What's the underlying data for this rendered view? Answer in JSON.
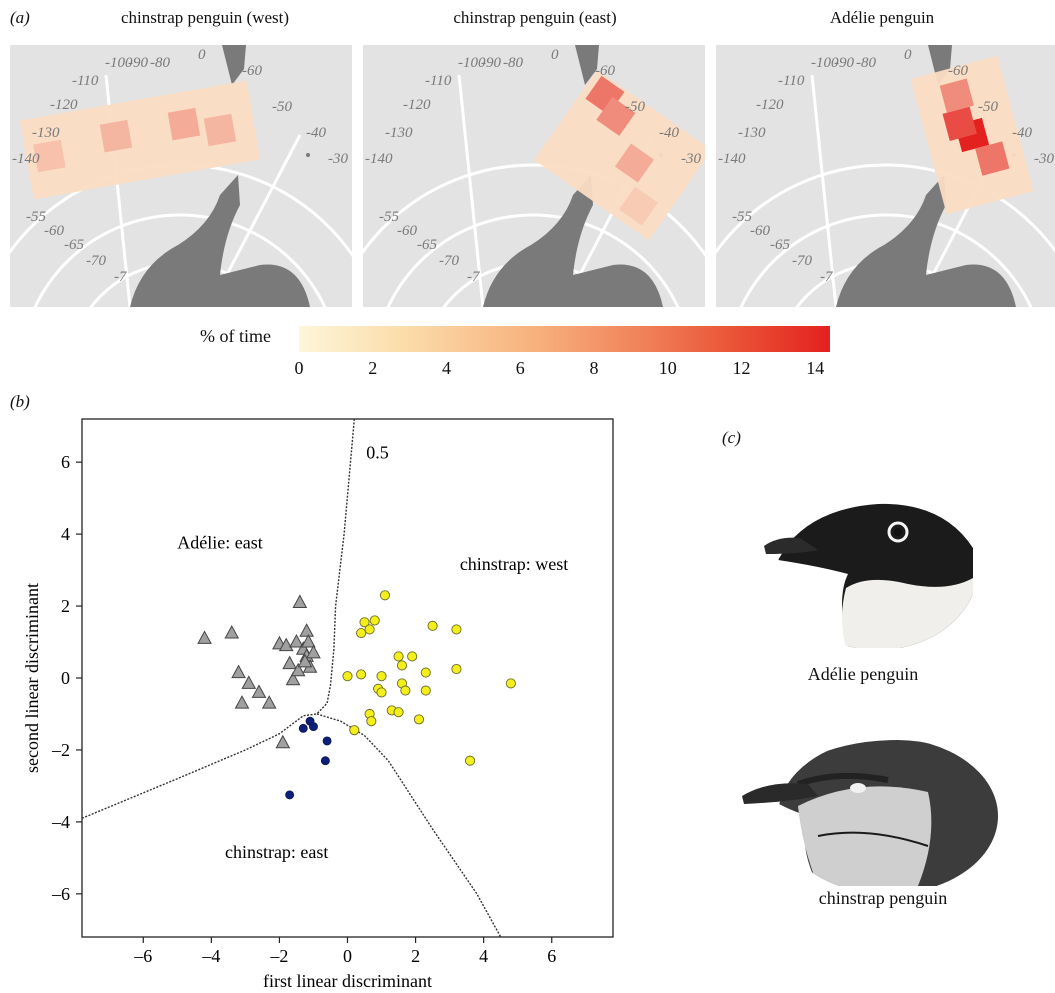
{
  "panel_a": {
    "letter": "a",
    "maps": [
      {
        "title": "chinstrap penguin (west)"
      },
      {
        "title": "chinstrap penguin (east)"
      },
      {
        "title": "Adélie penguin"
      }
    ],
    "longitude_labels": [
      "-100",
      "-90",
      "-80",
      "0",
      "-60",
      "-110",
      "-120",
      "-50",
      "-130",
      "-40",
      "-140",
      "-30"
    ],
    "latitude_labels": [
      "-55",
      "-60",
      "-65",
      "-70",
      "-7"
    ],
    "colorbar": {
      "label": "% of time",
      "ticks": [
        "0",
        "2",
        "4",
        "6",
        "8",
        "10",
        "12",
        "14"
      ],
      "range": [
        0,
        14.4
      ],
      "color_low": "#fdf6d9",
      "color_high": "#e3211f"
    },
    "colors": {
      "ocean": "#e3e3e3",
      "land": "#7a7a7a",
      "grid": "#ffffff"
    }
  },
  "panel_b": {
    "letter": "b"
  },
  "panel_c": {
    "letter": "c",
    "captions": [
      "Adélie penguin",
      "chinstrap penguin"
    ]
  },
  "chart_data": {
    "type": "scatter",
    "xlabel": "first linear discriminant",
    "ylabel": "second linear discriminant",
    "xlim": [
      -7.8,
      7.8
    ],
    "ylim": [
      -7.2,
      7.2
    ],
    "xticks": [
      -6,
      -4,
      -2,
      0,
      2,
      4,
      6
    ],
    "yticks": [
      -6,
      -4,
      -2,
      0,
      2,
      4,
      6
    ],
    "contour_label": "0.5",
    "region_labels": [
      {
        "text": "Adélie: east",
        "x": -5.0,
        "y": 3.6
      },
      {
        "text": "chinstrap: west",
        "x": 3.3,
        "y": 3.0
      },
      {
        "text": "chinstrap: east",
        "x": -3.6,
        "y": -5.0
      }
    ],
    "series": [
      {
        "marker": "triangle",
        "color": "#a0a0a0",
        "points": [
          [
            -4.2,
            1.1
          ],
          [
            -3.4,
            1.25
          ],
          [
            -3.2,
            0.15
          ],
          [
            -3.1,
            -0.7
          ],
          [
            -2.9,
            -0.15
          ],
          [
            -2.6,
            -0.4
          ],
          [
            -2.3,
            -0.7
          ],
          [
            -2.0,
            0.95
          ],
          [
            -1.8,
            0.9
          ],
          [
            -1.7,
            0.4
          ],
          [
            -1.6,
            -0.05
          ],
          [
            -1.4,
            2.1
          ],
          [
            -1.45,
            0.2
          ],
          [
            -1.5,
            1.0
          ],
          [
            -1.3,
            0.8
          ],
          [
            -1.2,
            1.3
          ],
          [
            -1.2,
            0.6
          ],
          [
            -1.15,
            1.0
          ],
          [
            -1.1,
            0.3
          ],
          [
            -1.0,
            0.7
          ],
          [
            -1.9,
            -1.8
          ],
          [
            -1.25,
            0.45
          ]
        ]
      },
      {
        "marker": "circle",
        "color": "#0d1f7a",
        "points": [
          [
            -1.7,
            -3.25
          ],
          [
            -1.3,
            -1.4
          ],
          [
            -1.1,
            -1.2
          ],
          [
            -1.0,
            -1.35
          ],
          [
            -0.6,
            -1.75
          ],
          [
            -0.65,
            -2.3
          ]
        ]
      },
      {
        "marker": "circle",
        "color": "#f4ef1a",
        "points": [
          [
            1.1,
            2.3
          ],
          [
            0.5,
            1.55
          ],
          [
            0.8,
            1.6
          ],
          [
            0.4,
            1.25
          ],
          [
            0.65,
            1.35
          ],
          [
            2.5,
            1.45
          ],
          [
            3.2,
            1.35
          ],
          [
            0.0,
            0.05
          ],
          [
            0.4,
            0.1
          ],
          [
            1.0,
            0.05
          ],
          [
            1.5,
            0.6
          ],
          [
            1.9,
            0.6
          ],
          [
            2.3,
            0.15
          ],
          [
            3.2,
            0.25
          ],
          [
            4.8,
            -0.15
          ],
          [
            1.6,
            -0.15
          ],
          [
            1.7,
            -0.35
          ],
          [
            2.3,
            -0.35
          ],
          [
            0.9,
            -0.3
          ],
          [
            1.0,
            -0.4
          ],
          [
            0.65,
            -1.0
          ],
          [
            0.7,
            -1.2
          ],
          [
            1.3,
            -0.9
          ],
          [
            1.5,
            -0.95
          ],
          [
            2.1,
            -1.15
          ],
          [
            0.2,
            -1.45
          ],
          [
            3.6,
            -2.3
          ],
          [
            1.6,
            0.35
          ]
        ]
      }
    ]
  }
}
